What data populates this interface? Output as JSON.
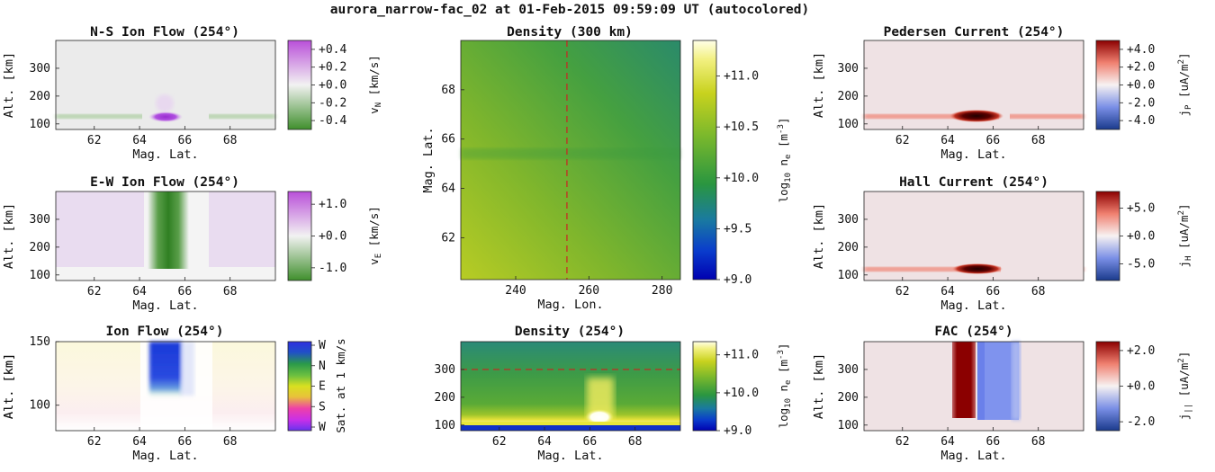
{
  "figure": {
    "title": "aurora_narrow-fac_02 at 01-Feb-2015 09:59:09 UT (autocolored)"
  },
  "chart_data": [
    {
      "id": "ns_flow",
      "type": "heatmap",
      "title": "N-S Ion Flow (254°)",
      "xlabel": "Mag. Lat.",
      "ylabel": "Alt. [km]",
      "xlim": [
        60.3,
        70.0
      ],
      "ylim": [
        80,
        400
      ],
      "xticks": [
        "62",
        "64",
        "66",
        "68"
      ],
      "yticks": [
        "100",
        "200",
        "300"
      ],
      "colorbar": {
        "label": "vN [km/s]",
        "label_main": "v",
        "label_sub": "N",
        "label_unit": " [km/s]",
        "colormap": "PRGn",
        "range": [
          -0.5,
          0.5
        ],
        "ticks": [
          "+0.4",
          "+0.2",
          "+0.0",
          "-0.2",
          "-0.4"
        ]
      }
    },
    {
      "id": "ew_flow",
      "type": "heatmap",
      "title": "E-W Ion Flow (254°)",
      "xlabel": "Mag. Lat.",
      "ylabel": "Alt. [km]",
      "xlim": [
        60.3,
        70.0
      ],
      "ylim": [
        80,
        400
      ],
      "xticks": [
        "62",
        "64",
        "66",
        "68"
      ],
      "yticks": [
        "100",
        "200",
        "300"
      ],
      "colorbar": {
        "label": "vE [km/s]",
        "label_main": "v",
        "label_sub": "E",
        "label_unit": " [km/s]",
        "colormap": "PRGn",
        "range": [
          -1.4,
          1.4
        ],
        "ticks": [
          "+1.0",
          "+0.0",
          "-1.0"
        ]
      }
    },
    {
      "id": "ion_flow",
      "type": "heatmap",
      "title": "Ion Flow (254°)",
      "xlabel": "Mag. Lat.",
      "ylabel": "Alt. [km]",
      "xlim": [
        60.3,
        70.0
      ],
      "ylim": [
        80,
        150
      ],
      "xticks": [
        "62",
        "64",
        "66",
        "68"
      ],
      "yticks": [
        "100",
        "150"
      ],
      "colorbar": {
        "label": "Sat. at 1 km/s",
        "colormap": "direction wheel",
        "ticks": [
          "W",
          "N",
          "E",
          "S",
          "W"
        ]
      }
    },
    {
      "id": "density_map",
      "type": "heatmap",
      "title": "Density (300 km)",
      "xlabel": "Mag. Lon.",
      "ylabel": "Mag. Lat.",
      "xlim": [
        225,
        285
      ],
      "ylim": [
        60.3,
        70.0
      ],
      "xticks": [
        "240",
        "260",
        "280"
      ],
      "yticks": [
        "62",
        "64",
        "66",
        "68"
      ],
      "reference_line": {
        "orientation": "vertical",
        "value": 254,
        "color": "#cc2222"
      },
      "colorbar": {
        "label": "log10 ne [m-3]",
        "label_main": "log",
        "label_sub": "10",
        "label_mid": " n",
        "label_sub2": "e",
        "label_unit": " [m",
        "label_sup": "-3",
        "label_end": "]",
        "colormap": "viridis-like",
        "range": [
          9.0,
          11.35
        ],
        "ticks": [
          "+11.0",
          "+10.5",
          "+10.0",
          "+9.5",
          "+9.0"
        ]
      }
    },
    {
      "id": "density_cut",
      "type": "heatmap",
      "title": "Density (254°)",
      "xlabel": "Mag. Lat.",
      "ylabel": "Alt. [km]",
      "xlim": [
        60.3,
        70.0
      ],
      "ylim": [
        80,
        400
      ],
      "xticks": [
        "62",
        "64",
        "66",
        "68"
      ],
      "yticks": [
        "100",
        "200",
        "300"
      ],
      "reference_line": {
        "orientation": "horizontal",
        "value": 300,
        "color": "#cc2222"
      },
      "colorbar": {
        "label": "log10 ne [m-3]",
        "label_main": "log",
        "label_sub": "10",
        "label_mid": " n",
        "label_sub2": "e",
        "label_unit": " [m",
        "label_sup": "-3",
        "label_end": "]",
        "colormap": "viridis-like",
        "range": [
          9.0,
          11.35
        ],
        "ticks": [
          "+11.0",
          "+10.0",
          "+9.0"
        ]
      }
    },
    {
      "id": "pedersen",
      "type": "heatmap",
      "title": "Pedersen Current (254°)",
      "xlabel": "Mag. Lat.",
      "ylabel": "Alt. [km]",
      "xlim": [
        60.3,
        70.0
      ],
      "ylim": [
        80,
        400
      ],
      "xticks": [
        "62",
        "64",
        "66",
        "68"
      ],
      "yticks": [
        "100",
        "200",
        "300"
      ],
      "colorbar": {
        "label": "jP [uA/m2]",
        "label_main": "j",
        "label_sub": "P",
        "label_unit": " [uA/m",
        "label_sup": "2",
        "label_end": "]",
        "colormap": "RdBu_r",
        "range": [
          -5,
          5
        ],
        "ticks": [
          "+4.0",
          "+2.0",
          "+0.0",
          "-2.0",
          "-4.0"
        ]
      }
    },
    {
      "id": "hall",
      "type": "heatmap",
      "title": "Hall Current (254°)",
      "xlabel": "Mag. Lat.",
      "ylabel": "Alt. [km]",
      "xlim": [
        60.3,
        70.0
      ],
      "ylim": [
        80,
        400
      ],
      "xticks": [
        "62",
        "64",
        "66",
        "68"
      ],
      "yticks": [
        "100",
        "200",
        "300"
      ],
      "colorbar": {
        "label": "jH [uA/m2]",
        "label_main": "j",
        "label_sub": "H",
        "label_unit": " [uA/m",
        "label_sup": "2",
        "label_end": "]",
        "colormap": "RdBu_r",
        "range": [
          -8,
          8
        ],
        "ticks": [
          "+5.0",
          "+0.0",
          "-5.0"
        ]
      }
    },
    {
      "id": "fac",
      "type": "heatmap",
      "title": "FAC (254°)",
      "xlabel": "Mag. Lat.",
      "ylabel": "Alt. [km]",
      "xlim": [
        60.3,
        70.0
      ],
      "ylim": [
        80,
        400
      ],
      "xticks": [
        "62",
        "64",
        "66",
        "68"
      ],
      "yticks": [
        "100",
        "200",
        "300"
      ],
      "colorbar": {
        "label": "j|| [uA/m2]",
        "label_main": "j",
        "label_sub": "||",
        "label_unit": " [uA/m",
        "label_sup": "2",
        "label_end": "]",
        "colormap": "RdBu_r",
        "range": [
          -2.5,
          2.5
        ],
        "ticks": [
          "+2.0",
          "+0.0",
          "-2.0"
        ]
      }
    }
  ]
}
